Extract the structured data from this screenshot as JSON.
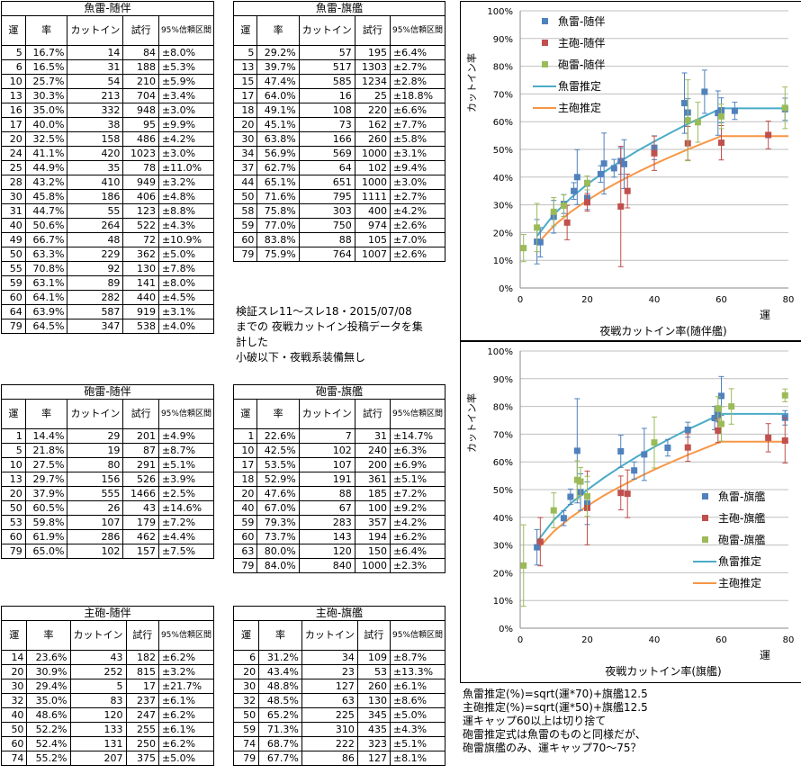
{
  "headers": {
    "unmei": "運",
    "rate": "率",
    "cutin": "カットイン",
    "trials": "試行",
    "ci": "95%信頼区間"
  },
  "tables": [
    {
      "id": "gyorai-zuihan",
      "title": "魚雷-随伴",
      "rows": [
        [
          "5",
          "16.7%",
          "14",
          "84",
          "±8.0%"
        ],
        [
          "6",
          "16.5%",
          "31",
          "188",
          "±5.3%"
        ],
        [
          "10",
          "25.7%",
          "54",
          "210",
          "±5.9%"
        ],
        [
          "13",
          "30.3%",
          "213",
          "704",
          "±3.4%"
        ],
        [
          "16",
          "35.0%",
          "332",
          "948",
          "±3.0%"
        ],
        [
          "17",
          "40.0%",
          "38",
          "95",
          "±9.9%"
        ],
        [
          "20",
          "32.5%",
          "158",
          "486",
          "±4.2%"
        ],
        [
          "24",
          "41.1%",
          "420",
          "1023",
          "±3.0%"
        ],
        [
          "25",
          "44.9%",
          "35",
          "78",
          "±11.0%"
        ],
        [
          "28",
          "43.2%",
          "410",
          "949",
          "±3.2%"
        ],
        [
          "30",
          "45.8%",
          "186",
          "406",
          "±4.8%"
        ],
        [
          "31",
          "44.7%",
          "55",
          "123",
          "±8.8%"
        ],
        [
          "40",
          "50.6%",
          "264",
          "522",
          "±4.3%"
        ],
        [
          "49",
          "66.7%",
          "48",
          "72",
          "±10.9%"
        ],
        [
          "50",
          "63.3%",
          "229",
          "362",
          "±5.0%"
        ],
        [
          "55",
          "70.8%",
          "92",
          "130",
          "±7.8%"
        ],
        [
          "59",
          "63.1%",
          "89",
          "141",
          "±8.0%"
        ],
        [
          "60",
          "64.1%",
          "282",
          "440",
          "±4.5%"
        ],
        [
          "64",
          "63.9%",
          "587",
          "919",
          "±3.1%"
        ],
        [
          "79",
          "64.5%",
          "347",
          "538",
          "±4.0%"
        ]
      ]
    },
    {
      "id": "gyorai-kikan",
      "title": "魚雷-旗艦",
      "rows": [
        [
          "5",
          "29.2%",
          "57",
          "195",
          "±6.4%"
        ],
        [
          "13",
          "39.7%",
          "517",
          "1303",
          "±2.7%"
        ],
        [
          "15",
          "47.4%",
          "585",
          "1234",
          "±2.8%"
        ],
        [
          "17",
          "64.0%",
          "16",
          "25",
          "±18.8%"
        ],
        [
          "18",
          "49.1%",
          "108",
          "220",
          "±6.6%"
        ],
        [
          "20",
          "45.1%",
          "73",
          "162",
          "±7.7%"
        ],
        [
          "30",
          "63.8%",
          "166",
          "260",
          "±5.8%"
        ],
        [
          "34",
          "56.9%",
          "569",
          "1000",
          "±3.1%"
        ],
        [
          "37",
          "62.7%",
          "64",
          "102",
          "±9.4%"
        ],
        [
          "44",
          "65.1%",
          "651",
          "1000",
          "±3.0%"
        ],
        [
          "50",
          "71.6%",
          "795",
          "1111",
          "±2.7%"
        ],
        [
          "58",
          "75.8%",
          "303",
          "400",
          "±4.2%"
        ],
        [
          "59",
          "77.0%",
          "750",
          "974",
          "±2.6%"
        ],
        [
          "60",
          "83.8%",
          "88",
          "105",
          "±7.0%"
        ],
        [
          "79",
          "75.9%",
          "764",
          "1007",
          "±2.6%"
        ]
      ]
    },
    {
      "id": "hourai-zuihan",
      "title": "砲雷-随伴",
      "rows": [
        [
          "1",
          "14.4%",
          "29",
          "201",
          "±4.9%"
        ],
        [
          "5",
          "21.8%",
          "19",
          "87",
          "±8.7%"
        ],
        [
          "10",
          "27.5%",
          "80",
          "291",
          "±5.1%"
        ],
        [
          "13",
          "29.7%",
          "156",
          "526",
          "±3.9%"
        ],
        [
          "20",
          "37.9%",
          "555",
          "1466",
          "±2.5%"
        ],
        [
          "50",
          "60.5%",
          "26",
          "43",
          "±14.6%"
        ],
        [
          "53",
          "59.8%",
          "107",
          "179",
          "±7.2%"
        ],
        [
          "60",
          "61.9%",
          "286",
          "462",
          "±4.4%"
        ],
        [
          "79",
          "65.0%",
          "102",
          "157",
          "±7.5%"
        ]
      ]
    },
    {
      "id": "hourai-kikan",
      "title": "砲雷-旗艦",
      "rows": [
        [
          "1",
          "22.6%",
          "7",
          "31",
          "±14.7%"
        ],
        [
          "10",
          "42.5%",
          "102",
          "240",
          "±6.3%"
        ],
        [
          "17",
          "53.5%",
          "107",
          "200",
          "±6.9%"
        ],
        [
          "18",
          "52.9%",
          "191",
          "361",
          "±5.1%"
        ],
        [
          "20",
          "47.6%",
          "88",
          "185",
          "±7.2%"
        ],
        [
          "40",
          "67.0%",
          "67",
          "100",
          "±9.2%"
        ],
        [
          "59",
          "79.3%",
          "283",
          "357",
          "±4.2%"
        ],
        [
          "60",
          "73.7%",
          "143",
          "194",
          "±6.2%"
        ],
        [
          "63",
          "80.0%",
          "120",
          "150",
          "±6.4%"
        ],
        [
          "79",
          "84.0%",
          "840",
          "1000",
          "±2.3%"
        ]
      ]
    },
    {
      "id": "shuhou-zuihan",
      "title": "主砲-随伴",
      "rows": [
        [
          "14",
          "23.6%",
          "43",
          "182",
          "±6.2%"
        ],
        [
          "20",
          "30.9%",
          "252",
          "815",
          "±3.2%"
        ],
        [
          "30",
          "29.4%",
          "5",
          "17",
          "±21.7%"
        ],
        [
          "32",
          "35.0%",
          "83",
          "237",
          "±6.1%"
        ],
        [
          "40",
          "48.6%",
          "120",
          "247",
          "±6.2%"
        ],
        [
          "50",
          "52.2%",
          "133",
          "255",
          "±6.1%"
        ],
        [
          "60",
          "52.4%",
          "131",
          "250",
          "±6.2%"
        ],
        [
          "74",
          "55.2%",
          "207",
          "375",
          "±5.0%"
        ]
      ]
    },
    {
      "id": "shuhou-kikan",
      "title": "主砲-旗艦",
      "rows": [
        [
          "6",
          "31.2%",
          "34",
          "109",
          "±8.7%"
        ],
        [
          "20",
          "43.4%",
          "23",
          "53",
          "±13.3%"
        ],
        [
          "30",
          "48.8%",
          "127",
          "260",
          "±6.1%"
        ],
        [
          "32",
          "48.5%",
          "63",
          "130",
          "±8.6%"
        ],
        [
          "50",
          "65.2%",
          "225",
          "345",
          "±5.0%"
        ],
        [
          "59",
          "71.3%",
          "310",
          "435",
          "±4.3%"
        ],
        [
          "74",
          "68.7%",
          "222",
          "323",
          "±5.1%"
        ],
        [
          "79",
          "67.7%",
          "86",
          "127",
          "±8.1%"
        ]
      ]
    }
  ],
  "notes": {
    "middle": "検証スレ11～スレ18・2015/07/08\nまでの 夜戦カットイン投稿データを集\n計した\n小破以下・夜戦系装備無し",
    "bottom": "魚雷推定(%)=sqrt(運*70)+旗艦12.5\n主砲推定(%)=sqrt(運*50)+旗艦12.5\n運キャップ60以上は切り捨て\n砲雷推定式は魚雷のものと同様だが、\n砲雷旗艦のみ、運キャップ70～75？"
  },
  "colors": {
    "gyorai": "#4f81bd",
    "shuhou": "#c0504d",
    "hourai": "#9bbb59",
    "gyorai_fit": "#4bacc6",
    "shuhou_fit": "#f79646"
  },
  "chart_data": [
    {
      "type": "scatter",
      "title": "",
      "xlabel": "夜戦カットイン率(随伴艦)",
      "ylabel": "カットイン率",
      "xunit_label": "運",
      "xlim": [
        0,
        80
      ],
      "ylim": [
        0,
        100
      ],
      "xticks": [
        0,
        20,
        40,
        60,
        80
      ],
      "yticks": [
        "0%",
        "10%",
        "20%",
        "30%",
        "40%",
        "50%",
        "60%",
        "70%",
        "80%",
        "90%",
        "100%"
      ],
      "legend_position": "top-right",
      "series": [
        {
          "name": "魚雷-随伴",
          "kind": "points",
          "color_key": "gyorai",
          "x": [
            5,
            6,
            10,
            13,
            16,
            17,
            20,
            24,
            25,
            28,
            30,
            31,
            40,
            49,
            50,
            55,
            59,
            60,
            64,
            79
          ],
          "y": [
            16.7,
            16.5,
            25.7,
            30.3,
            35.0,
            40.0,
            32.5,
            41.1,
            44.9,
            43.2,
            45.8,
            44.7,
            50.6,
            66.7,
            63.3,
            70.8,
            63.1,
            64.1,
            63.9,
            64.5
          ],
          "err": [
            8.0,
            5.3,
            5.9,
            3.4,
            3.0,
            9.9,
            4.2,
            3.0,
            11.0,
            3.2,
            4.8,
            8.8,
            4.3,
            10.9,
            5.0,
            7.8,
            8.0,
            4.5,
            3.1,
            4.0
          ]
        },
        {
          "name": "主砲-随伴",
          "kind": "points",
          "color_key": "shuhou",
          "x": [
            14,
            20,
            30,
            32,
            40,
            50,
            60,
            74
          ],
          "y": [
            23.6,
            30.9,
            29.4,
            35.0,
            48.6,
            52.2,
            52.4,
            55.2
          ],
          "err": [
            6.2,
            3.2,
            21.7,
            6.1,
            6.2,
            6.1,
            6.2,
            5.0
          ]
        },
        {
          "name": "砲雷-随伴",
          "kind": "points",
          "color_key": "hourai",
          "x": [
            1,
            5,
            10,
            13,
            20,
            50,
            53,
            60,
            79
          ],
          "y": [
            14.4,
            21.8,
            27.5,
            29.7,
            37.9,
            60.5,
            59.8,
            61.9,
            65.0
          ],
          "err": [
            4.9,
            8.7,
            5.1,
            3.9,
            2.5,
            14.6,
            7.2,
            4.4,
            7.5
          ]
        },
        {
          "name": "魚雷推定",
          "kind": "line",
          "color_key": "gyorai_fit",
          "x": [
            5,
            10,
            15,
            20,
            25,
            30,
            35,
            40,
            45,
            50,
            55,
            60,
            65,
            70,
            75,
            80
          ],
          "y": [
            18.7,
            26.5,
            32.4,
            37.4,
            41.8,
            45.8,
            49.5,
            52.9,
            56.1,
            59.2,
            62.0,
            64.8,
            64.8,
            64.8,
            64.8,
            64.8
          ]
        },
        {
          "name": "主砲推定",
          "kind": "line",
          "color_key": "shuhou_fit",
          "x": [
            5,
            10,
            15,
            20,
            25,
            30,
            35,
            40,
            45,
            50,
            55,
            60,
            65,
            70,
            75,
            80
          ],
          "y": [
            15.8,
            22.4,
            27.4,
            31.6,
            35.4,
            38.7,
            41.8,
            44.7,
            47.4,
            50.0,
            52.4,
            54.8,
            54.8,
            54.8,
            54.8,
            54.8
          ]
        }
      ]
    },
    {
      "type": "scatter",
      "title": "",
      "xlabel": "夜戦カットイン率(旗艦)",
      "ylabel": "カットイン率",
      "xunit_label": "運",
      "xlim": [
        0,
        80
      ],
      "ylim": [
        0,
        100
      ],
      "xticks": [
        0,
        20,
        40,
        60,
        80
      ],
      "yticks": [
        "0%",
        "10%",
        "20%",
        "30%",
        "40%",
        "50%",
        "60%",
        "70%",
        "80%",
        "90%",
        "100%"
      ],
      "legend_position": "bottom-right",
      "series": [
        {
          "name": "魚雷-旗艦",
          "kind": "points",
          "color_key": "gyorai",
          "x": [
            5,
            13,
            15,
            17,
            18,
            20,
            30,
            34,
            37,
            44,
            50,
            58,
            59,
            60,
            79
          ],
          "y": [
            29.2,
            39.7,
            47.4,
            64.0,
            49.1,
            45.1,
            63.8,
            56.9,
            62.7,
            65.1,
            71.6,
            75.8,
            77.0,
            83.8,
            75.9
          ],
          "err": [
            6.4,
            2.7,
            2.8,
            18.8,
            6.6,
            7.7,
            5.8,
            3.1,
            9.4,
            3.0,
            2.7,
            4.2,
            2.6,
            7.0,
            2.6
          ]
        },
        {
          "name": "主砲-旗艦",
          "kind": "points",
          "color_key": "shuhou",
          "x": [
            6,
            20,
            30,
            32,
            50,
            59,
            74,
            79
          ],
          "y": [
            31.2,
            43.4,
            48.8,
            48.5,
            65.2,
            71.3,
            68.7,
            67.7
          ],
          "err": [
            8.7,
            13.3,
            6.1,
            8.6,
            5.0,
            4.3,
            5.1,
            8.1
          ]
        },
        {
          "name": "砲雷-旗艦",
          "kind": "points",
          "color_key": "hourai",
          "x": [
            1,
            10,
            17,
            18,
            20,
            40,
            59,
            60,
            63,
            79
          ],
          "y": [
            22.6,
            42.5,
            53.5,
            52.9,
            47.6,
            67.0,
            79.3,
            73.7,
            80.0,
            84.0
          ],
          "err": [
            14.7,
            6.3,
            6.9,
            5.1,
            7.2,
            9.2,
            4.2,
            6.2,
            6.4,
            2.3
          ]
        },
        {
          "name": "魚雷推定",
          "kind": "line",
          "color_key": "gyorai_fit",
          "x": [
            5,
            10,
            15,
            20,
            25,
            30,
            35,
            40,
            45,
            50,
            55,
            60,
            65,
            70,
            75,
            80
          ],
          "y": [
            31.2,
            39.0,
            44.9,
            49.9,
            54.3,
            58.3,
            62.0,
            65.4,
            68.6,
            71.7,
            74.5,
            77.3,
            77.3,
            77.3,
            77.3,
            77.3
          ]
        },
        {
          "name": "主砲推定",
          "kind": "line",
          "color_key": "shuhou_fit",
          "x": [
            5,
            10,
            15,
            20,
            25,
            30,
            35,
            40,
            45,
            50,
            55,
            60,
            65,
            70,
            75,
            80
          ],
          "y": [
            28.3,
            34.9,
            39.9,
            44.1,
            47.9,
            51.2,
            54.3,
            57.2,
            59.9,
            62.5,
            64.9,
            67.3,
            67.3,
            67.3,
            67.3,
            67.3
          ]
        }
      ]
    }
  ]
}
